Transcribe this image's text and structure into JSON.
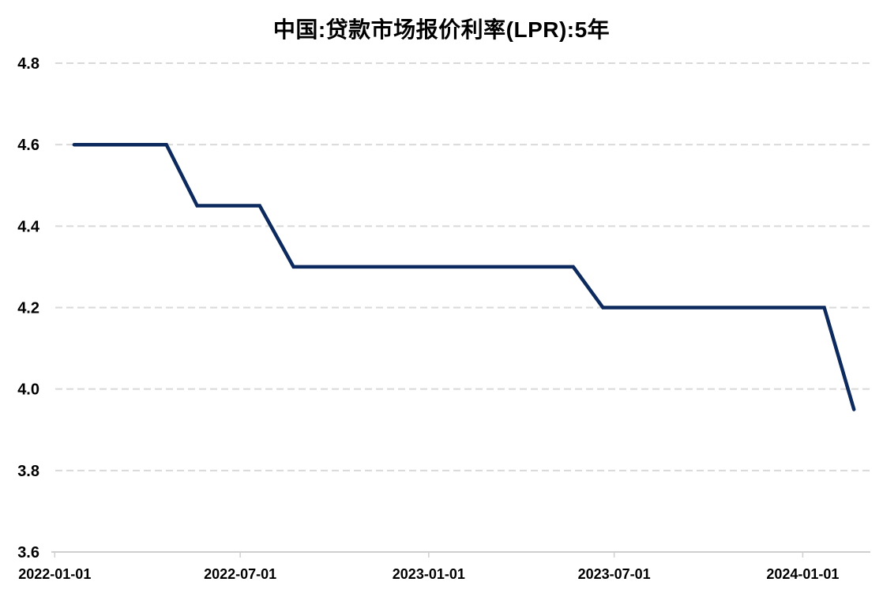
{
  "page": {
    "background_color": "#ffffff"
  },
  "chart_data": {
    "type": "line",
    "title": "中国:贷款市场报价利率(LPR):5年",
    "xlabel": "",
    "ylabel": "",
    "legend": "none",
    "grid": "horizontal-dashed",
    "ylim": [
      3.6,
      4.8
    ],
    "y_ticks": [
      3.6,
      3.8,
      4.0,
      4.2,
      4.4,
      4.6,
      4.8
    ],
    "xlim": [
      "2021-12-31",
      "2024-03-07"
    ],
    "x_ticks": [
      "2022-01-01",
      "2022-07-01",
      "2023-01-01",
      "2023-07-01",
      "2024-01-01"
    ],
    "x_tick_labels": [
      "2022-01-01",
      "2022-07-01",
      "2023-01-01",
      "2023-07-01",
      "2024-01-01"
    ],
    "series": [
      {
        "name": "中国:贷款市场报价利率(LPR):5年",
        "unit": "%",
        "x": [
          "2022-01-20",
          "2022-02-21",
          "2022-03-21",
          "2022-04-20",
          "2022-05-20",
          "2022-06-20",
          "2022-07-20",
          "2022-08-22",
          "2022-09-20",
          "2022-10-20",
          "2022-11-21",
          "2022-12-20",
          "2023-01-20",
          "2023-02-20",
          "2023-03-20",
          "2023-04-20",
          "2023-05-22",
          "2023-06-20",
          "2023-07-20",
          "2023-08-21",
          "2023-09-20",
          "2023-10-20",
          "2023-11-20",
          "2023-12-20",
          "2024-01-22",
          "2024-02-20"
        ],
        "y": [
          4.6,
          4.6,
          4.6,
          4.6,
          4.45,
          4.45,
          4.45,
          4.3,
          4.3,
          4.3,
          4.3,
          4.3,
          4.3,
          4.3,
          4.3,
          4.3,
          4.3,
          4.2,
          4.2,
          4.2,
          4.2,
          4.2,
          4.2,
          4.2,
          4.2,
          3.95
        ]
      }
    ],
    "colors": {
      "line": "#0d2a5e",
      "gridline": "#d9d9d9",
      "axis": "#cfcfcf",
      "text": "#000000"
    }
  }
}
